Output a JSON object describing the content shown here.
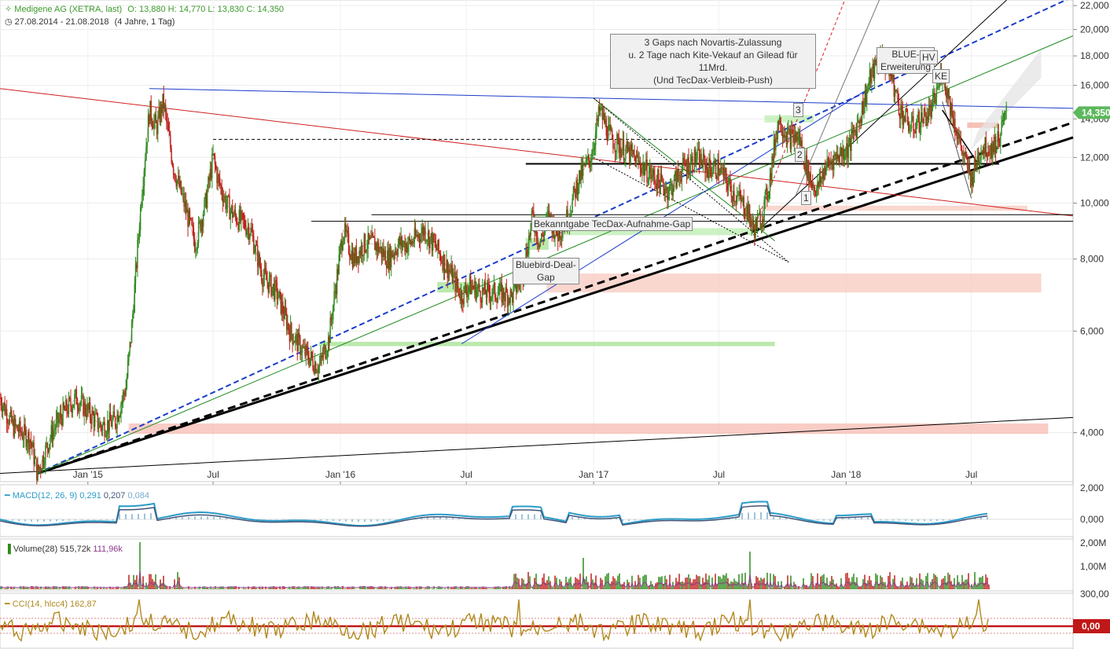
{
  "header": {
    "instrument": "Medigene AG (XETRA, last)",
    "ohlc": "O: 13,880  H: 14,770  L: 13,830  C: 14,350",
    "range": "27.08.2014 - 21.08.2018",
    "period": "(4 Jahre, 1 Tag)"
  },
  "colors": {
    "up": "#2e8b1e",
    "down": "#c0201a",
    "macd": "#2a9bc8",
    "signal": "#445577",
    "cci": "#b08a1e",
    "price_tag": "#5cb85c"
  },
  "chart_data": {
    "type": "line",
    "title": "Medigene AG (XETRA, last)",
    "scale": "log",
    "ylim": [
      3.3,
      22.5
    ],
    "x_tick_labels": [
      "Jan '15",
      "Jul",
      "Jan '16",
      "Jul",
      "Jan '17",
      "Jul",
      "Jan '18",
      "Jul"
    ],
    "y_tick_labels": [
      "22,000",
      "20,000",
      "18,000",
      "16,000",
      "14,000",
      "12,000",
      "10,000",
      "8,000",
      "6,000",
      "4,000"
    ],
    "y_ticks": [
      22,
      20,
      18,
      16,
      14,
      12,
      10,
      8,
      6,
      4
    ],
    "last_price_label": "14,350",
    "last_price": 14.35,
    "series": [
      {
        "name": "Medigene AG (XETRA, last)",
        "x": [
          "2014-08-27",
          "2014-09-15",
          "2014-10-10",
          "2014-10-20",
          "2014-11-10",
          "2014-11-25",
          "2014-12-15",
          "2015-01-05",
          "2015-01-20",
          "2015-02-10",
          "2015-02-25",
          "2015-03-05",
          "2015-03-20",
          "2015-03-31",
          "2015-04-10",
          "2015-04-20",
          "2015-05-05",
          "2015-05-20",
          "2015-06-05",
          "2015-06-20",
          "2015-07-01",
          "2015-07-08",
          "2015-07-20",
          "2015-08-01",
          "2015-08-24",
          "2015-09-10",
          "2015-10-01",
          "2015-10-20",
          "2015-11-10",
          "2015-12-01",
          "2015-12-15",
          "2016-01-05",
          "2016-01-20",
          "2016-02-05",
          "2016-02-20",
          "2016-03-10",
          "2016-03-25",
          "2016-04-10",
          "2016-05-01",
          "2016-05-20",
          "2016-06-10",
          "2016-06-24",
          "2016-07-05",
          "2016-07-25",
          "2016-08-15",
          "2016-09-05",
          "2016-09-20",
          "2016-10-05",
          "2016-10-15",
          "2016-10-28",
          "2016-11-10",
          "2016-11-25",
          "2016-12-10",
          "2016-12-28",
          "2017-01-10",
          "2017-01-25",
          "2017-02-10",
          "2017-02-28",
          "2017-03-15",
          "2017-04-01",
          "2017-04-20",
          "2017-05-10",
          "2017-05-30",
          "2017-06-15",
          "2017-07-01",
          "2017-07-20",
          "2017-08-10",
          "2017-08-20",
          "2017-09-01",
          "2017-09-10",
          "2017-09-25",
          "2017-10-10",
          "2017-10-25",
          "2017-11-01",
          "2017-11-10",
          "2017-11-20",
          "2017-12-01",
          "2017-12-15",
          "2018-01-05",
          "2018-01-20",
          "2018-02-05",
          "2018-02-20",
          "2018-03-05",
          "2018-03-20",
          "2018-04-05",
          "2018-04-20",
          "2018-05-05",
          "2018-05-20",
          "2018-06-05",
          "2018-06-20",
          "2018-07-01",
          "2018-07-15",
          "2018-08-01",
          "2018-08-10",
          "2018-08-21"
        ],
        "values": [
          4.6,
          4.1,
          3.9,
          3.4,
          4.0,
          4.3,
          4.6,
          4.3,
          4.1,
          4.2,
          4.8,
          6.0,
          10.5,
          14.5,
          13.5,
          15.0,
          11.5,
          10.0,
          8.5,
          10.0,
          12.0,
          11.0,
          10.0,
          9.5,
          9.0,
          7.5,
          7.0,
          6.0,
          5.5,
          5.2,
          5.8,
          9.0,
          8.0,
          8.5,
          8.5,
          8.0,
          8.5,
          8.5,
          9.0,
          8.3,
          7.5,
          6.9,
          7.2,
          7.0,
          7.0,
          6.9,
          7.5,
          9.5,
          8.5,
          9.5,
          8.8,
          9.5,
          11.0,
          12.0,
          14.5,
          13.0,
          12.5,
          12.0,
          11.5,
          11.0,
          10.5,
          11.5,
          12.0,
          11.5,
          11.5,
          10.5,
          9.8,
          9.0,
          9.5,
          10.5,
          14.0,
          13.0,
          13.0,
          12.0,
          11.0,
          10.5,
          11.5,
          12.0,
          12.5,
          14.0,
          16.5,
          18.0,
          17.0,
          14.5,
          13.5,
          14.0,
          14.5,
          17.0,
          14.0,
          12.0,
          11.0,
          12.5,
          12.5,
          13.0,
          14.35
        ]
      }
    ],
    "annotations": [
      "3 Gaps nach Novartis-Zulassung",
      "u. 2 Tage nach Kite-Vekauf an Gilead für 11Mrd.",
      "(Und TecDax-Verbleib-Push)",
      "Bekanntgabe TecDax-Aufnahme-Gap",
      "Bluebird-Deal-",
      "Gap",
      "BLUE-",
      "Erweiterung",
      "HV",
      "KE",
      "1",
      "2",
      "3"
    ],
    "grid": true,
    "legend": "none"
  },
  "indicators": {
    "macd": {
      "label": "MACD(12, 26, 9)",
      "v1": "0,291",
      "v2": "0,207",
      "v3": "0,084",
      "y_tick_labels": [
        "2,000",
        "0,000"
      ]
    },
    "volume": {
      "label": "Volume(28)",
      "v1": "515,72k",
      "v2": "111,96k",
      "y_tick_labels": [
        "2,00M",
        "1,00M"
      ]
    },
    "cci": {
      "label": "CCI(14, hlcc4)",
      "value": "162,87",
      "y_tick_labels": [
        "300,00"
      ],
      "zero_label": "0,00"
    }
  }
}
